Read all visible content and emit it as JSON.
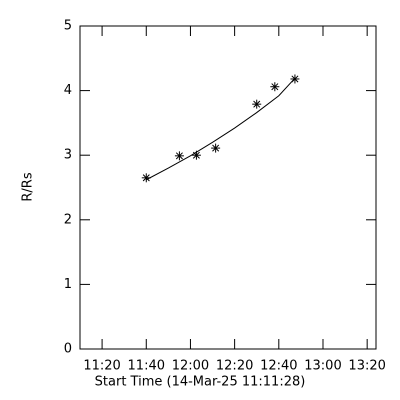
{
  "chart_data": {
    "type": "scatter",
    "xlabel": "Start Time (14-Mar-25 11:11:28)",
    "ylabel": "R/Rs",
    "xlim": [
      670,
      804
    ],
    "xticks": [
      {
        "value": 680,
        "label": "11:20"
      },
      {
        "value": 700,
        "label": "11:40"
      },
      {
        "value": 720,
        "label": "12:00"
      },
      {
        "value": 740,
        "label": "12:20"
      },
      {
        "value": 760,
        "label": "12:40"
      },
      {
        "value": 780,
        "label": "13:00"
      },
      {
        "value": 800,
        "label": "13:20"
      }
    ],
    "ylim": [
      0,
      5
    ],
    "yticks": [
      0,
      1,
      2,
      3,
      4,
      5
    ],
    "series": [
      {
        "marker": "asterisk",
        "color": "#000000",
        "x": [
          700.0,
          715.0,
          722.7,
          731.4,
          750.0,
          758.2,
          767.3
        ],
        "values": [
          2.65,
          2.99,
          3.0,
          3.11,
          3.79,
          4.06,
          4.18
        ]
      },
      {
        "marker": "line",
        "color": "#000000",
        "x": [
          700,
          710,
          720,
          730,
          740,
          750,
          760,
          767
        ],
        "values": [
          2.62,
          2.8,
          2.99,
          3.2,
          3.42,
          3.66,
          3.92,
          4.18
        ]
      }
    ]
  }
}
